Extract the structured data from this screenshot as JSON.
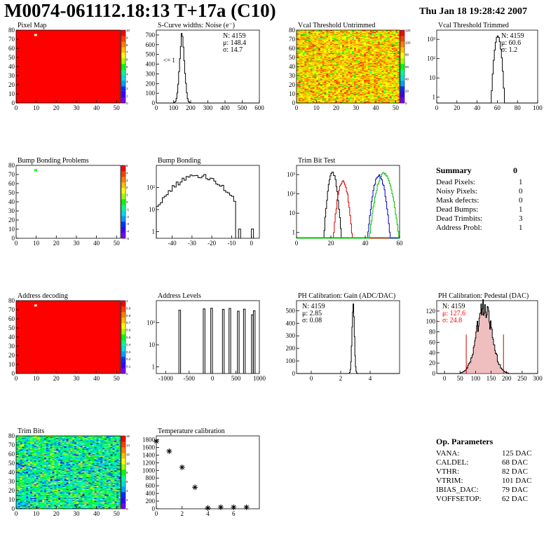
{
  "header": {
    "title": "M0074-061112.18:13 T+17a (C10)",
    "timestamp": "Thu Jan 18 19:28:42 2007"
  },
  "colors": {
    "red": "#ff0000",
    "palette": [
      "#7c00ff",
      "#3c00ff",
      "#0030ff",
      "#00a0ff",
      "#00e0e0",
      "#00ff90",
      "#00ff00",
      "#a0ff00",
      "#ffff00",
      "#ffc000",
      "#ff8000",
      "#ff4000",
      "#ff0000"
    ],
    "hist_black": "#000000",
    "trim_red": "#d00000",
    "trim_blue": "#0000c0",
    "trim_green": "#00c000",
    "pedestal_fill": "#e08080",
    "stats_red": "#ff0000"
  },
  "chart_data": [
    {
      "id": "pixel-map",
      "type": "heatmap",
      "title": "Pixel Map",
      "xlim": [
        0,
        52
      ],
      "ylim": [
        0,
        80
      ],
      "xticks": [
        "0",
        "10",
        "20",
        "30",
        "40",
        "50"
      ],
      "yticks": [
        "0",
        "10",
        "20",
        "30",
        "40",
        "50",
        "60",
        "70",
        "80"
      ],
      "zlim": [
        0,
        10
      ],
      "zticks": [
        "0",
        "1",
        "2",
        "3",
        "4",
        "5",
        "6",
        "7",
        "8",
        "9",
        "10"
      ],
      "fill_value": 10,
      "special_pixels": [
        {
          "col": 9,
          "row": 74,
          "value": 0
        }
      ]
    },
    {
      "id": "scurve-widths",
      "type": "bar",
      "title": "S-Curve widths: Noise (e⁻)",
      "xlim": [
        0,
        600
      ],
      "ylim": [
        0,
        750
      ],
      "xticks": [
        "0",
        "100",
        "200",
        "300",
        "400",
        "500",
        "600"
      ],
      "yticks": [
        "0",
        "100",
        "200",
        "300",
        "400",
        "500",
        "600",
        "700"
      ],
      "stats": [
        "N: 4159",
        "μ: 148.4",
        "σ: 14.7"
      ],
      "annotation": "<= 1",
      "peak": {
        "mean": 150,
        "sigma": 14,
        "height": 700
      }
    },
    {
      "id": "vcal-untrimmed",
      "type": "heatmap",
      "title": "Vcal Threshold Untrimmed",
      "xlim": [
        0,
        52
      ],
      "ylim": [
        0,
        80
      ],
      "xticks": [
        "0",
        "10",
        "20",
        "30",
        "40",
        "50"
      ],
      "yticks": [
        "0",
        "10",
        "20",
        "30",
        "40",
        "50",
        "60",
        "70",
        "80"
      ],
      "zlim": [
        0,
        120
      ],
      "zticks": [
        "0",
        "20",
        "40",
        "60",
        "80",
        "100",
        "120"
      ],
      "distribution": {
        "mean": 85,
        "sigma": 12
      }
    },
    {
      "id": "vcal-trimmed",
      "type": "bar",
      "title": "Vcal Threshold Trimmed",
      "xlim": [
        0,
        100
      ],
      "log_y": true,
      "ylim": [
        0.5,
        3000
      ],
      "xticks": [
        "0",
        "20",
        "40",
        "60",
        "80",
        "100"
      ],
      "yticks": [
        "1",
        "10",
        "10²",
        "10³"
      ],
      "stats": [
        "N: 4159",
        "μ: 60.6",
        "σ:  1.2"
      ],
      "peak": {
        "mean": 60.6,
        "sigma": 1.2,
        "height": 1500
      }
    },
    {
      "id": "bump-bonding-problems",
      "type": "heatmap",
      "title": "Bump Bonding Problems",
      "xlim": [
        0,
        52
      ],
      "ylim": [
        0,
        80
      ],
      "xticks": [
        "0",
        "10",
        "20",
        "30",
        "40",
        "50"
      ],
      "yticks": [
        "0",
        "10",
        "20",
        "30",
        "40",
        "50",
        "60",
        "70",
        "80"
      ],
      "zlim": [
        -5,
        5
      ],
      "zticks": [
        "-5",
        "-4",
        "-3",
        "-2",
        "-1",
        "0",
        "1",
        "2",
        "3",
        "4",
        "5"
      ],
      "fill_value": null,
      "special_pixels": [
        {
          "col": 9,
          "row": 74,
          "value": 1
        }
      ]
    },
    {
      "id": "bump-bonding",
      "type": "bar",
      "title": "Bump Bonding",
      "xlim": [
        -48,
        4
      ],
      "log_y": true,
      "ylim": [
        0.5,
        1000
      ],
      "xticks": [
        "-40",
        "-30",
        "-20",
        "-10",
        "0"
      ],
      "yticks": [
        "1",
        "10",
        "10²"
      ],
      "peak": {
        "mean": -27,
        "sigma": 5,
        "height": 350
      },
      "extra_bars": [
        {
          "x": -6,
          "value": 1
        },
        {
          "x": 0.5,
          "value": 1
        }
      ]
    },
    {
      "id": "trim-bit-test",
      "type": "bar",
      "title": "Trim Bit Test",
      "xlim": [
        0,
        60
      ],
      "log_y": true,
      "ylim": [
        0.5,
        3000
      ],
      "xticks": [
        "0",
        "20",
        "40",
        "60"
      ],
      "yticks": [
        "1",
        "10",
        "10²",
        "10³"
      ],
      "series": [
        {
          "name": "",
          "color_key": "hist_black",
          "mean": 21,
          "sigma": 1.3,
          "height": 1200
        },
        {
          "name": "",
          "color_key": "trim_red",
          "mean": 27,
          "sigma": 1.5,
          "height": 450
        },
        {
          "name": "",
          "color_key": "trim_blue",
          "mean": 48,
          "sigma": 1.7,
          "height": 900
        },
        {
          "name": "",
          "color_key": "trim_green",
          "mean": 51,
          "sigma": 2.2,
          "height": 1100
        }
      ]
    },
    {
      "id": "address-decoding",
      "type": "heatmap",
      "title": "Address decoding",
      "xlim": [
        0,
        52
      ],
      "ylim": [
        0,
        80
      ],
      "xticks": [
        "0",
        "10",
        "20",
        "30",
        "40",
        "50"
      ],
      "yticks": [
        "0",
        "10",
        "20",
        "30",
        "40",
        "50",
        "60",
        "70",
        "80"
      ],
      "zlim": [
        0,
        1
      ],
      "zticks": [
        "0",
        "0.1",
        "0.2",
        "0.3",
        "0.4",
        "0.5",
        "0.6",
        "0.7",
        "0.8",
        "0.9",
        "1"
      ],
      "fill_value": 1,
      "special_pixels": [
        {
          "col": 9,
          "row": 74,
          "value": 0
        }
      ]
    },
    {
      "id": "address-levels",
      "type": "bar",
      "title": "Address Levels",
      "xlim": [
        -1200,
        1000
      ],
      "log_y": true,
      "ylim": [
        0.5,
        1000
      ],
      "xticks": [
        "-1000",
        "-500",
        "0",
        "500",
        "1000"
      ],
      "yticks": [
        "1",
        "10",
        "10²"
      ],
      "spikes": [
        -700,
        -180,
        -20,
        230,
        370,
        550,
        680,
        850,
        890
      ]
    },
    {
      "id": "ph-gain",
      "type": "bar",
      "title": "PH Calibration: Gain (ADC/DAC)",
      "xlim": [
        -1,
        6
      ],
      "ylim": [
        0,
        580
      ],
      "xticks": [
        "0",
        "2",
        "4"
      ],
      "yticks": [
        "0",
        "100",
        "200",
        "300",
        "400",
        "500"
      ],
      "stats": [
        "N: 4159",
        "μ: 2.85",
        "σ: 0.08"
      ],
      "peak": {
        "mean": 2.85,
        "sigma": 0.08,
        "height": 545
      }
    },
    {
      "id": "ph-pedestal",
      "type": "bar",
      "title": "PH Calibration: Pedestal (DAC)",
      "xlim": [
        -25,
        300
      ],
      "ylim": [
        0,
        140
      ],
      "xticks": [
        "0",
        "50",
        "100",
        "150",
        "200",
        "250",
        "300"
      ],
      "yticks": [
        "0",
        "20",
        "40",
        "60",
        "80",
        "100",
        "120"
      ],
      "stats": [
        "N: 4159",
        "μ: 127.6",
        "σ: 24.8"
      ],
      "peak": {
        "mean": 127.6,
        "sigma": 24.8,
        "height": 125
      },
      "markers": [
        {
          "x": 70,
          "value": 75
        },
        {
          "x": 190,
          "value": 75
        }
      ]
    },
    {
      "id": "trim-bits",
      "type": "heatmap",
      "title": "Trim Bits",
      "xlim": [
        0,
        52
      ],
      "ylim": [
        0,
        80
      ],
      "xticks": [
        "0",
        "10",
        "20",
        "30",
        "40",
        "50"
      ],
      "yticks": [
        "0",
        "10",
        "20",
        "30",
        "40",
        "50",
        "60",
        "70",
        "80"
      ],
      "zlim": [
        0,
        16
      ],
      "zticks": [
        "0",
        "2",
        "4",
        "6",
        "8",
        "10",
        "12",
        "14",
        "16"
      ],
      "distribution": {
        "mean": 6.5,
        "sigma": 2
      }
    },
    {
      "id": "temperature-calibration",
      "type": "scatter",
      "title": "Temperature calibration",
      "xlim": [
        0,
        8
      ],
      "ylim": [
        0,
        1900
      ],
      "xticks": [
        "0",
        "2",
        "4",
        "6"
      ],
      "yticks": [
        "0",
        "200",
        "400",
        "600",
        "800",
        "1000",
        "1200",
        "1400",
        "1600",
        "1800"
      ],
      "x": [
        0,
        1,
        2,
        3,
        4,
        5,
        6,
        7
      ],
      "y": [
        1760,
        1500,
        1080,
        560,
        20,
        40,
        40,
        40
      ]
    }
  ],
  "summary": {
    "title": "Summary",
    "total": "0",
    "rows": [
      {
        "label": "Dead Pixels:",
        "value": "1"
      },
      {
        "label": "Noisy Pixels:",
        "value": "0"
      },
      {
        "label": "Mask defects:",
        "value": "0"
      },
      {
        "label": "Dead Bumps:",
        "value": "1"
      },
      {
        "label": "Dead Trimbits:",
        "value": "3"
      },
      {
        "label": "Address Probl:",
        "value": "1"
      }
    ]
  },
  "op_parameters": {
    "title": "Op. Parameters",
    "rows": [
      {
        "label": "VANA:",
        "value": "125 DAC"
      },
      {
        "label": "CALDEL:",
        "value": "68 DAC"
      },
      {
        "label": "VTHR:",
        "value": "82 DAC"
      },
      {
        "label": "VTRIM:",
        "value": "101 DAC"
      },
      {
        "label": "IBIAS_DAC:",
        "value": "79 DAC"
      },
      {
        "label": "VOFFSETOP:",
        "value": "62 DAC"
      }
    ]
  }
}
